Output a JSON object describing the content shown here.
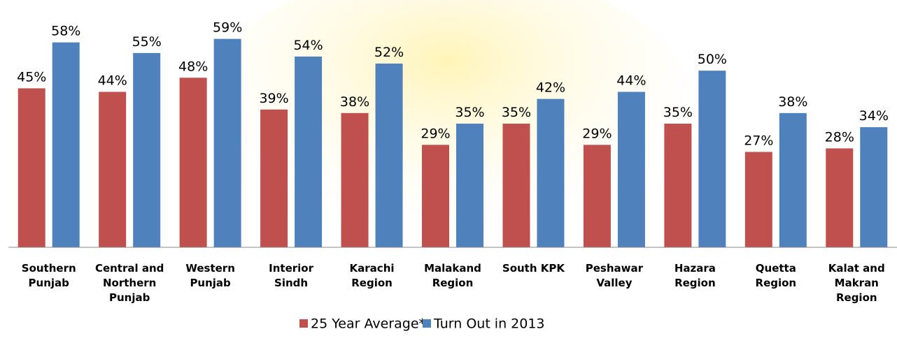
{
  "chart_data": {
    "type": "bar",
    "categories": [
      "Southern Punjab",
      "Central and Northern Punjab",
      "Western Punjab",
      "Interior Sindh",
      "Karachi Region",
      "Malakand Region",
      "South KPK",
      "Peshawar Valley",
      "Hazara Region",
      "Quetta Region",
      "Kalat and Makran Region"
    ],
    "series": [
      {
        "name": "25 Year Average*",
        "color": "#c0504d",
        "values": [
          45,
          44,
          48,
          39,
          38,
          29,
          35,
          29,
          35,
          27,
          28
        ],
        "value_labels": [
          "45%",
          "44%",
          "48%",
          "39%",
          "38%",
          "29%",
          "35%",
          "29%",
          "35%",
          "27%",
          "28%"
        ]
      },
      {
        "name": "Turn Out in 2013",
        "color": "#4f81bd",
        "values": [
          58,
          55,
          59,
          54,
          52,
          35,
          42,
          44,
          50,
          38,
          34
        ],
        "value_labels": [
          "58%",
          "55%",
          "59%",
          "54%",
          "52%",
          "35%",
          "42%",
          "44%",
          "50%",
          "38%",
          "34%"
        ]
      }
    ],
    "ylim": [
      0,
      70
    ],
    "legend": "bottom"
  }
}
